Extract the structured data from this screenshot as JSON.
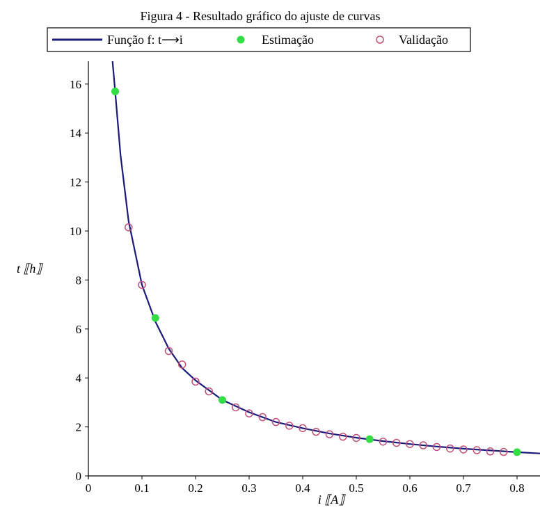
{
  "chart_data": {
    "type": "scatter",
    "title": "Figura 4 - Resultado gráfico do ajuste de curvas",
    "xlabel": "i ⟦A⟧",
    "ylabel": "t ⟦h⟧",
    "xlim": [
      0,
      0.85
    ],
    "ylim": [
      0,
      17
    ],
    "x_ticks": [
      "0",
      "0.1",
      "0.2",
      "0.3",
      "0.4",
      "0.5",
      "0.6",
      "0.7",
      "0.8"
    ],
    "y_ticks": [
      "0",
      "2",
      "4",
      "6",
      "8",
      "10",
      "12",
      "14",
      "16"
    ],
    "grid": false,
    "legend_position": "top",
    "legend": [
      "Função f: t⟶i",
      "Estimação",
      "Validação"
    ],
    "colors": {
      "curve": "#1a1a7a",
      "estimation": "#33dd44",
      "validation": "#c0507a"
    },
    "series": [
      {
        "name": "Função f: t⟶i",
        "style": "line",
        "x": [
          0.045,
          0.05,
          0.06,
          0.075,
          0.1,
          0.125,
          0.15,
          0.175,
          0.2,
          0.25,
          0.3,
          0.35,
          0.4,
          0.45,
          0.5,
          0.55,
          0.6,
          0.65,
          0.7,
          0.75,
          0.8,
          0.85
        ],
        "y": [
          17.4,
          15.7,
          13.1,
          10.4,
          7.8,
          6.3,
          5.2,
          4.4,
          3.9,
          3.1,
          2.6,
          2.2,
          1.95,
          1.73,
          1.56,
          1.42,
          1.3,
          1.2,
          1.11,
          1.04,
          0.97,
          0.91
        ]
      },
      {
        "name": "Estimação",
        "style": "filled-circle",
        "x": [
          0.05,
          0.125,
          0.25,
          0.525,
          0.8
        ],
        "y": [
          15.7,
          6.45,
          3.1,
          1.5,
          0.97
        ]
      },
      {
        "name": "Validação",
        "style": "open-circle",
        "x": [
          0.075,
          0.1,
          0.15,
          0.175,
          0.2,
          0.225,
          0.275,
          0.3,
          0.325,
          0.35,
          0.375,
          0.4,
          0.425,
          0.45,
          0.475,
          0.5,
          0.55,
          0.575,
          0.6,
          0.625,
          0.65,
          0.675,
          0.7,
          0.725,
          0.75,
          0.775
        ],
        "y": [
          10.15,
          7.8,
          5.1,
          4.55,
          3.85,
          3.45,
          2.8,
          2.55,
          2.4,
          2.2,
          2.05,
          1.95,
          1.8,
          1.7,
          1.6,
          1.55,
          1.4,
          1.35,
          1.3,
          1.25,
          1.18,
          1.12,
          1.08,
          1.05,
          1.0,
          0.98
        ]
      }
    ]
  }
}
